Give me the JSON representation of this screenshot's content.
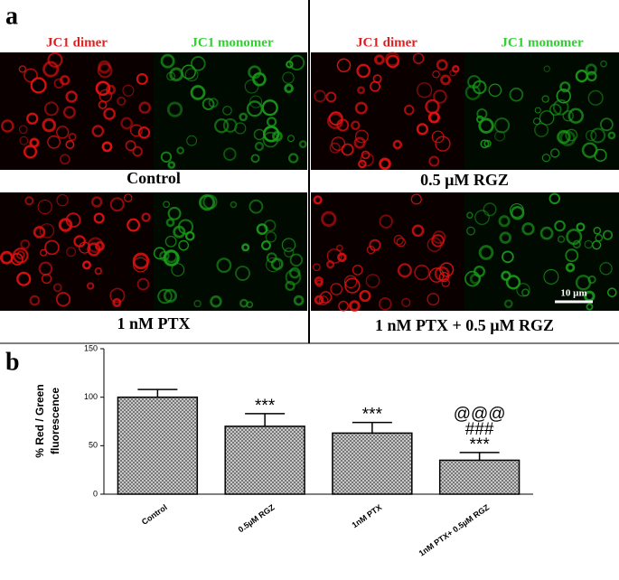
{
  "panel_a": {
    "label": "a",
    "headers": [
      "JC1 dimer",
      "JC1 monomer",
      "JC1 dimer",
      "JC1 monomer"
    ],
    "captions": [
      "Control",
      "0.5 µM RGZ",
      "1 nM PTX",
      "1 nM PTX + 0.5 µM RGZ"
    ],
    "scale_bar": "10 µm"
  },
  "panel_b": {
    "label": "b"
  },
  "chart_data": {
    "type": "bar",
    "ylabel": [
      "% Red / Green",
      "fluorescence"
    ],
    "categories": [
      "Control",
      "0.5µM RGZ",
      "1nM PTX",
      "1nM PTX+ 0.5µM RGZ"
    ],
    "values": [
      100,
      70,
      63,
      35
    ],
    "errors": [
      8,
      13,
      11,
      8
    ],
    "color": "#9a9a9a",
    "ylim": [
      0,
      150
    ],
    "yticks": [
      0,
      50,
      100,
      150
    ],
    "annotations": [
      {
        "category": "0.5µM RGZ",
        "labels": [
          "***"
        ]
      },
      {
        "category": "1nM PTX",
        "labels": [
          "***"
        ]
      },
      {
        "category": "1nM PTX+ 0.5µM RGZ",
        "labels": [
          "@@@",
          "###",
          "***"
        ]
      }
    ]
  }
}
